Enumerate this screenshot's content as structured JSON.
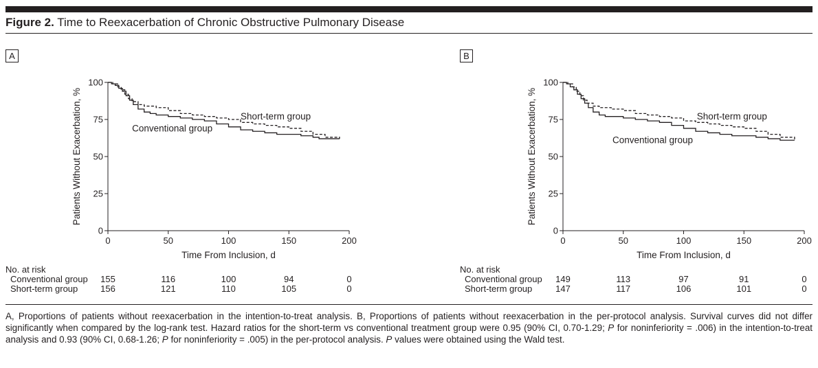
{
  "figure": {
    "label": "Figure 2.",
    "title": "Time to Reexacerbation of Chronic Obstructive Pulmonary Disease"
  },
  "risk_header": "No. at risk",
  "caption": [
    {
      "t": "A, Proportions of patients without reexacerbation in the intention-to-treat analysis. B, Proportions of patients without reexacerbation in the per-protocol analysis. Survival curves did not differ significantly when compared by the log-rank test. Hazard ratios for the short-term vs conventional treatment group were 0.95 (90% CI, 0.70-1.29; ",
      "i": false
    },
    {
      "t": "P",
      "i": true
    },
    {
      "t": " for noninferiority = .006) in the intention-to-treat analysis and 0.93 (90% CI, 0.68-1.26; ",
      "i": false
    },
    {
      "t": "P",
      "i": true
    },
    {
      "t": " for noninferiority = .005) in the per-protocol analysis. ",
      "i": false
    },
    {
      "t": "P",
      "i": true
    },
    {
      "t": " values were obtained using the Wald test.",
      "i": false
    }
  ],
  "chart_data": [
    {
      "type": "line",
      "panel": "A",
      "xlabel": "Time From Inclusion, d",
      "ylabel": "Patients Without Exacerbation, %",
      "xlim": [
        0,
        200
      ],
      "ylim": [
        0,
        100
      ],
      "xticks": [
        0,
        50,
        100,
        150,
        200
      ],
      "yticks": [
        0,
        25,
        50,
        75,
        100
      ],
      "grid": false,
      "series": [
        {
          "name": "Conventional group",
          "style": "solid",
          "label_at": [
            20,
            69
          ],
          "points": [
            [
              0,
              100
            ],
            [
              3,
              99
            ],
            [
              6,
              98
            ],
            [
              9,
              96
            ],
            [
              12,
              94
            ],
            [
              15,
              91
            ],
            [
              18,
              88
            ],
            [
              21,
              85
            ],
            [
              25,
              82
            ],
            [
              30,
              80
            ],
            [
              35,
              79
            ],
            [
              40,
              78
            ],
            [
              50,
              77
            ],
            [
              60,
              76
            ],
            [
              70,
              75
            ],
            [
              80,
              74
            ],
            [
              90,
              72
            ],
            [
              100,
              70
            ],
            [
              110,
              68
            ],
            [
              120,
              67
            ],
            [
              130,
              66
            ],
            [
              140,
              65
            ],
            [
              150,
              65
            ],
            [
              160,
              64
            ],
            [
              170,
              63
            ],
            [
              175,
              62
            ],
            [
              180,
              62
            ],
            [
              192,
              62
            ]
          ]
        },
        {
          "name": "Short-term group",
          "style": "dashed",
          "label_at": [
            110,
            77
          ],
          "points": [
            [
              0,
              100
            ],
            [
              4,
              99
            ],
            [
              8,
              97
            ],
            [
              11,
              95
            ],
            [
              14,
              92
            ],
            [
              17,
              89
            ],
            [
              20,
              87
            ],
            [
              25,
              85
            ],
            [
              30,
              84
            ],
            [
              40,
              83
            ],
            [
              50,
              81
            ],
            [
              60,
              79
            ],
            [
              70,
              78
            ],
            [
              80,
              77
            ],
            [
              90,
              76
            ],
            [
              100,
              75
            ],
            [
              110,
              73
            ],
            [
              120,
              72
            ],
            [
              130,
              71
            ],
            [
              140,
              70
            ],
            [
              150,
              69
            ],
            [
              160,
              67
            ],
            [
              170,
              65
            ],
            [
              180,
              63
            ],
            [
              192,
              62
            ]
          ]
        }
      ],
      "at_risk": [
        {
          "name": "Conventional group",
          "counts": [
            155,
            116,
            100,
            94,
            0
          ]
        },
        {
          "name": "Short-term group",
          "counts": [
            156,
            121,
            110,
            105,
            0
          ]
        }
      ]
    },
    {
      "type": "line",
      "panel": "B",
      "xlabel": "Time From Inclusion, d",
      "ylabel": "Patients Without Exacerbation, %",
      "xlim": [
        0,
        200
      ],
      "ylim": [
        0,
        100
      ],
      "xticks": [
        0,
        50,
        100,
        150,
        200
      ],
      "yticks": [
        0,
        25,
        50,
        75,
        100
      ],
      "grid": false,
      "series": [
        {
          "name": "Conventional group",
          "style": "solid",
          "label_at": [
            41,
            61
          ],
          "points": [
            [
              0,
              100
            ],
            [
              3,
              99
            ],
            [
              6,
              97
            ],
            [
              9,
              95
            ],
            [
              12,
              92
            ],
            [
              15,
              89
            ],
            [
              18,
              86
            ],
            [
              21,
              83
            ],
            [
              25,
              80
            ],
            [
              30,
              78
            ],
            [
              35,
              77
            ],
            [
              40,
              77
            ],
            [
              50,
              76
            ],
            [
              60,
              75
            ],
            [
              70,
              74
            ],
            [
              80,
              73
            ],
            [
              90,
              71
            ],
            [
              100,
              69
            ],
            [
              110,
              67
            ],
            [
              120,
              66
            ],
            [
              130,
              65
            ],
            [
              140,
              64
            ],
            [
              150,
              64
            ],
            [
              160,
              63
            ],
            [
              170,
              62
            ],
            [
              180,
              61
            ],
            [
              192,
              61
            ]
          ]
        },
        {
          "name": "Short-term group",
          "style": "dashed",
          "label_at": [
            111,
            77
          ],
          "points": [
            [
              0,
              100
            ],
            [
              4,
              99
            ],
            [
              8,
              97
            ],
            [
              11,
              94
            ],
            [
              14,
              91
            ],
            [
              17,
              88
            ],
            [
              20,
              86
            ],
            [
              25,
              84
            ],
            [
              30,
              83
            ],
            [
              40,
              82
            ],
            [
              50,
              81
            ],
            [
              60,
              79
            ],
            [
              70,
              78
            ],
            [
              80,
              77
            ],
            [
              90,
              76
            ],
            [
              100,
              74
            ],
            [
              110,
              73
            ],
            [
              120,
              72
            ],
            [
              130,
              71
            ],
            [
              140,
              70
            ],
            [
              150,
              69
            ],
            [
              160,
              67
            ],
            [
              170,
              65
            ],
            [
              180,
              63
            ],
            [
              192,
              61
            ]
          ]
        }
      ],
      "at_risk": [
        {
          "name": "Conventional group",
          "counts": [
            149,
            113,
            97,
            91,
            0
          ]
        },
        {
          "name": "Short-term group",
          "counts": [
            147,
            117,
            106,
            101,
            0
          ]
        }
      ]
    }
  ]
}
